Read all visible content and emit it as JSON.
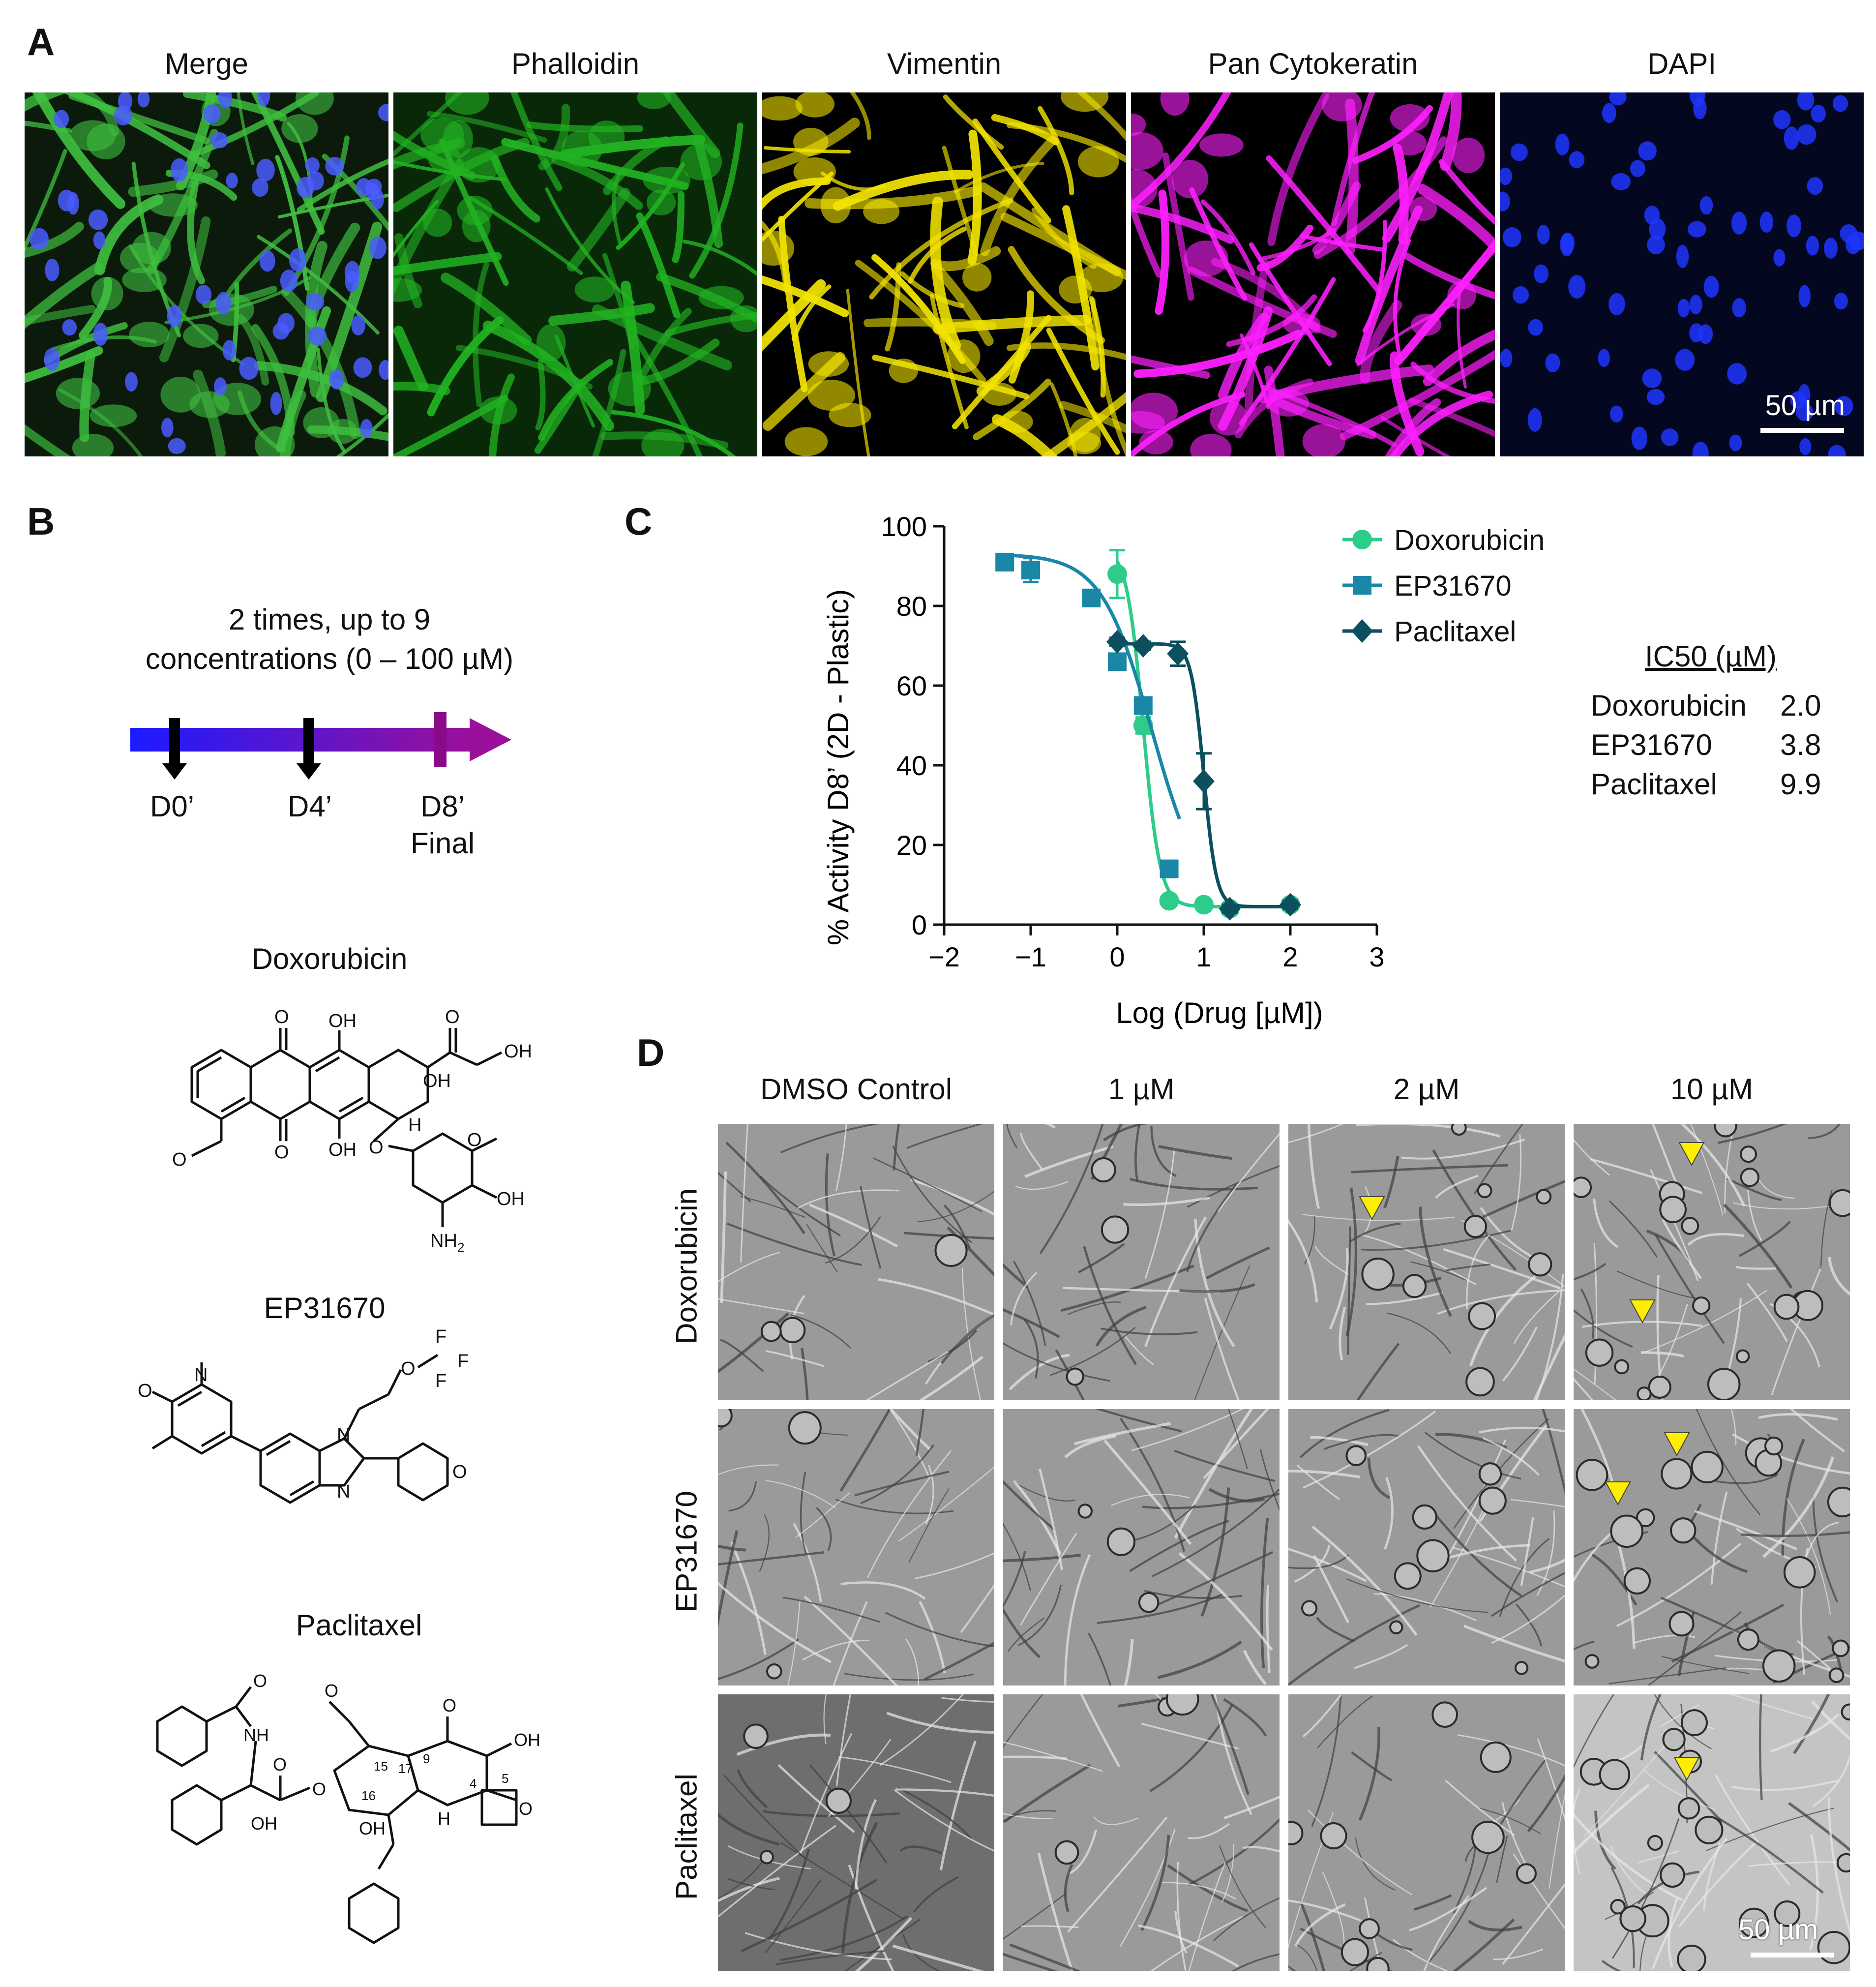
{
  "panels": {
    "a": "A",
    "b": "B",
    "c": "C",
    "d": "D"
  },
  "panel_a": {
    "channels": [
      {
        "label": "Merge",
        "color": "#3fbf3f"
      },
      {
        "label": "Phalloidin",
        "color": "#22b322"
      },
      {
        "label": "Vimentin",
        "color": "#f2e300"
      },
      {
        "label": "Pan Cytokeratin",
        "color": "#ff1fff"
      },
      {
        "label": "DAPI",
        "color": "#1f35ff"
      }
    ],
    "scale_bar": "50 µm"
  },
  "panel_b": {
    "schedule_line1": "2 times, up to 9",
    "schedule_line2": "concentrations (0 – 100 µM)",
    "timepoints": [
      "D0’",
      "D4’",
      "D8’"
    ],
    "final_label": "Final",
    "compounds": [
      "Doxorubicin",
      "EP31670",
      "Paclitaxel"
    ],
    "atom_labels": {
      "oh": "OH",
      "o": "O",
      "h": "H",
      "nh2": "NH",
      "sub2": "2",
      "n": "N",
      "nh": "NH",
      "f": "F",
      "num9": "9",
      "num15": "15",
      "num17": "17",
      "num16": "16",
      "num4": "4",
      "num5": "5"
    }
  },
  "chart_data": {
    "type": "line",
    "title": "",
    "xlabel": "Log (Drug [µM])",
    "ylabel": "% Activity D8’ (2D - Plastic)",
    "xlim": [
      -2,
      3
    ],
    "ylim": [
      0,
      100
    ],
    "xticks": [
      "−2",
      "−1",
      "0",
      "1",
      "2",
      "3"
    ],
    "yticks": [
      "0",
      "20",
      "40",
      "60",
      "80",
      "100"
    ],
    "legend_position": "top-right",
    "series": [
      {
        "name": "Doxorubicin",
        "color": "#2ecc8a",
        "marker": "circle",
        "x": [
          0,
          0.3,
          0.6,
          1.0,
          1.3,
          2.0
        ],
        "y": [
          88,
          50,
          6,
          5,
          4,
          5
        ],
        "err": [
          6,
          2,
          1,
          1,
          1,
          1
        ],
        "fit": {
          "top": 95,
          "bottom": 4.5,
          "log_ic50": 0.3,
          "hill": 4.5,
          "xmin": 0,
          "xmax": 2
        }
      },
      {
        "name": "EP31670",
        "color": "#1a87a6",
        "marker": "square",
        "x": [
          -1.3,
          -1.0,
          -0.3,
          0,
          0.3,
          0.6
        ],
        "y": [
          91,
          89,
          82,
          66,
          55,
          14
        ],
        "err": [
          1.5,
          3,
          2,
          2,
          2,
          2
        ],
        "fit": {
          "top": 93,
          "bottom": 4.5,
          "log_ic50": 0.4,
          "hill": 1.5,
          "xmin": -1.3,
          "xmax": 0.72
        }
      },
      {
        "name": "Paclitaxel",
        "color": "#0c4f5e",
        "marker": "diamond",
        "x": [
          0,
          0.3,
          0.7,
          1.0,
          1.3,
          2.0
        ],
        "y": [
          71,
          70,
          68,
          36,
          4,
          5
        ],
        "err": [
          1,
          1,
          3,
          7,
          1,
          1
        ],
        "fit": {
          "top": 70.5,
          "bottom": 4.5,
          "log_ic50": 1.0,
          "hill": 6,
          "xmin": 0,
          "xmax": 2,
          "plateau": 70.5
        }
      }
    ]
  },
  "ic50": {
    "header": "IC50 (µM)",
    "rows": [
      {
        "name": "Doxorubicin",
        "value": "2.0"
      },
      {
        "name": "EP31670",
        "value": "3.8"
      },
      {
        "name": "Paclitaxel",
        "value": "9.9"
      }
    ]
  },
  "panel_d": {
    "columns": [
      "DMSO Control",
      "1 µM",
      "2 µM",
      "10 µM"
    ],
    "rows": [
      "Doxorubicin",
      "EP31670",
      "Paclitaxel"
    ],
    "scale_bar": "50 µm",
    "arrow_color": "#ffee00"
  }
}
